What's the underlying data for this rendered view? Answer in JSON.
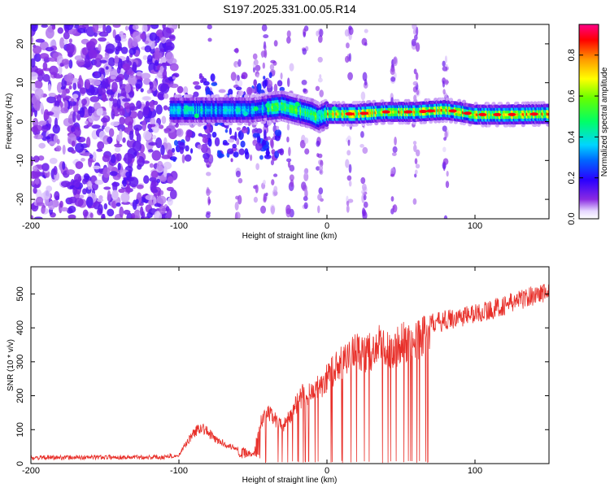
{
  "chart_data": [
    {
      "type": "heatmap",
      "title": "S197.2025.331.00.05.R14",
      "xlabel": "Height of straight line (km)",
      "ylabel": "Frequency (Hz)",
      "xlim": [
        -200,
        150
      ],
      "ylim": [
        -25,
        25
      ],
      "xticks": [
        -200,
        -100,
        0,
        100
      ],
      "yticks": [
        -20,
        -10,
        0,
        10,
        20
      ],
      "colorbar": {
        "label": "Normalized spectral amplitude",
        "range": [
          0,
          0.95
        ],
        "ticks": [
          0.0,
          0.2,
          0.4,
          0.6,
          0.8
        ]
      },
      "ridge": {
        "description_points_x": [
          -100,
          -80,
          -50,
          -30,
          -20,
          -10,
          -5,
          0,
          10,
          20,
          40,
          60,
          80,
          90,
          100,
          120,
          150
        ],
        "frequency_hz": [
          3,
          3,
          3,
          4,
          3,
          2,
          1,
          2,
          2,
          2,
          2.5,
          2.5,
          3,
          2.5,
          1.8,
          1.8,
          2
        ]
      },
      "noise_region_x": [
        -200,
        -103
      ]
    },
    {
      "type": "line",
      "title": "",
      "xlabel": "Height of straight line (km)",
      "ylabel": "SNR (10 * v/v)",
      "xlim": [
        -200,
        150
      ],
      "ylim": [
        0,
        580
      ],
      "xticks": [
        -200,
        -100,
        0,
        100
      ],
      "yticks": [
        0,
        100,
        200,
        300,
        400,
        500
      ],
      "series": [
        {
          "name": "SNR",
          "color": "#e8302a",
          "x": [
            -200,
            -150,
            -110,
            -100,
            -95,
            -90,
            -85,
            -80,
            -75,
            -70,
            -65,
            -60,
            -55,
            -50,
            -45,
            -40,
            -35,
            -30,
            -25,
            -20,
            -15,
            -10,
            -5,
            0,
            5,
            10,
            15,
            20,
            25,
            30,
            35,
            40,
            45,
            50,
            55,
            60,
            65,
            70,
            80,
            90,
            100,
            110,
            120,
            130,
            140,
            150
          ],
          "values": [
            10,
            12,
            12,
            25,
            60,
            90,
            110,
            90,
            70,
            60,
            50,
            45,
            40,
            25,
            120,
            150,
            130,
            110,
            140,
            180,
            210,
            200,
            230,
            250,
            280,
            300,
            310,
            340,
            320,
            330,
            350,
            340,
            330,
            360,
            350,
            360,
            380,
            400,
            410,
            420,
            430,
            440,
            455,
            470,
            485,
            495
          ]
        }
      ]
    }
  ]
}
